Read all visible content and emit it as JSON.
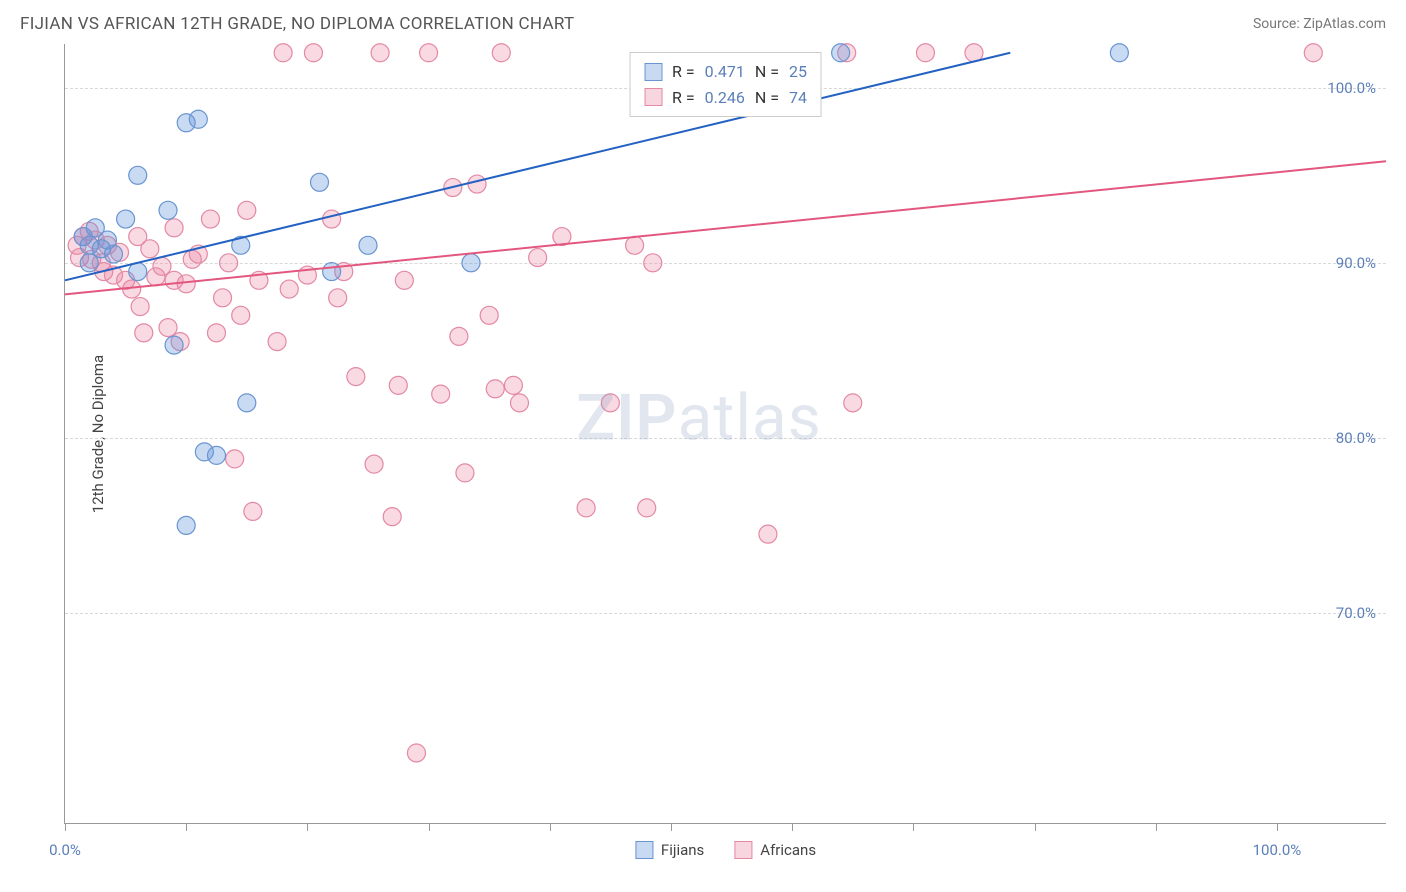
{
  "header": {
    "title": "FIJIAN VS AFRICAN 12TH GRADE, NO DIPLOMA CORRELATION CHART",
    "source": "Source: ZipAtlas.com"
  },
  "chart": {
    "type": "scatter",
    "ylabel": "12th Grade, No Diploma",
    "watermark_zip": "ZIP",
    "watermark_atlas": "atlas",
    "xlim": [
      0,
      109
    ],
    "ylim": [
      58,
      102.5
    ],
    "y_ticks": [
      70,
      80,
      90,
      100
    ],
    "y_tick_labels": [
      "70.0%",
      "80.0%",
      "90.0%",
      "100.0%"
    ],
    "x_ticks": [
      0,
      10,
      20,
      30,
      40,
      50,
      60,
      70,
      80,
      90,
      100
    ],
    "x_tick_labels_shown": {
      "0": "0.0%",
      "100": "100.0%"
    },
    "background_color": "#ffffff",
    "grid_color": "#d8d8d8",
    "axis_color": "#999999",
    "tick_label_color": "#5b7fb8",
    "series": {
      "fijians": {
        "label": "Fijians",
        "color_fill": "rgba(100,150,220,0.35)",
        "color_stroke": "#6a95d0",
        "swatch_fill": "#c8daf2",
        "swatch_border": "#6a95d0",
        "marker_radius": 9,
        "r_value": "0.471",
        "n_value": "25",
        "trend": {
          "x1": 0,
          "y1": 89.0,
          "x2": 78,
          "y2": 102.0,
          "color": "#2362c2",
          "width": 2
        },
        "points": [
          [
            1.5,
            91.5
          ],
          [
            2.0,
            91.0
          ],
          [
            2.5,
            92.0
          ],
          [
            3.5,
            91.3
          ],
          [
            3.0,
            90.8
          ],
          [
            6.0,
            95.0
          ],
          [
            8.5,
            93.0
          ],
          [
            9.0,
            85.3
          ],
          [
            10.0,
            98.0
          ],
          [
            11.0,
            98.2
          ],
          [
            11.5,
            79.2
          ],
          [
            12.5,
            79.0
          ],
          [
            10.0,
            75.0
          ],
          [
            14.5,
            91.0
          ],
          [
            15.0,
            82.0
          ],
          [
            21.0,
            94.6
          ],
          [
            22.0,
            89.5
          ],
          [
            25.0,
            91.0
          ],
          [
            33.5,
            90.0
          ],
          [
            64.0,
            102.0
          ],
          [
            87.0,
            102.0
          ],
          [
            4.0,
            90.5
          ],
          [
            6.0,
            89.5
          ],
          [
            2.0,
            90.0
          ],
          [
            5.0,
            92.5
          ]
        ]
      },
      "africans": {
        "label": "Africans",
        "color_fill": "rgba(235,130,160,0.30)",
        "color_stroke": "#e389a5",
        "swatch_fill": "#f7d6e0",
        "swatch_border": "#e389a5",
        "marker_radius": 9,
        "r_value": "0.246",
        "n_value": "74",
        "trend": {
          "x1": 0,
          "y1": 88.2,
          "x2": 109,
          "y2": 95.8,
          "color": "#e3577f",
          "width": 2
        },
        "points": [
          [
            1.0,
            91.0
          ],
          [
            1.2,
            90.3
          ],
          [
            1.5,
            91.5
          ],
          [
            2.0,
            91.8
          ],
          [
            2.2,
            90.2
          ],
          [
            2.5,
            91.3
          ],
          [
            3.0,
            90.0
          ],
          [
            3.2,
            89.5
          ],
          [
            3.5,
            91.0
          ],
          [
            4.0,
            89.3
          ],
          [
            4.5,
            90.6
          ],
          [
            5.0,
            89.0
          ],
          [
            5.5,
            88.5
          ],
          [
            6.0,
            91.5
          ],
          [
            6.2,
            87.5
          ],
          [
            6.5,
            86.0
          ],
          [
            7.0,
            90.8
          ],
          [
            7.5,
            89.2
          ],
          [
            8.0,
            89.8
          ],
          [
            8.5,
            86.3
          ],
          [
            9.0,
            92.0
          ],
          [
            9.5,
            85.5
          ],
          [
            10.0,
            88.8
          ],
          [
            10.5,
            90.2
          ],
          [
            12.0,
            92.5
          ],
          [
            12.5,
            86.0
          ],
          [
            13.0,
            88.0
          ],
          [
            14.0,
            78.8
          ],
          [
            14.5,
            87.0
          ],
          [
            15.0,
            93.0
          ],
          [
            15.5,
            75.8
          ],
          [
            16.0,
            89.0
          ],
          [
            17.5,
            85.5
          ],
          [
            18.0,
            102.0
          ],
          [
            18.5,
            88.5
          ],
          [
            20.0,
            89.3
          ],
          [
            20.5,
            102.0
          ],
          [
            22.0,
            92.5
          ],
          [
            22.5,
            88.0
          ],
          [
            23.0,
            89.5
          ],
          [
            24.0,
            83.5
          ],
          [
            25.5,
            78.5
          ],
          [
            26.0,
            102.0
          ],
          [
            27.0,
            75.5
          ],
          [
            27.5,
            83.0
          ],
          [
            28.0,
            89.0
          ],
          [
            29.0,
            62.0
          ],
          [
            30.0,
            102.0
          ],
          [
            31.0,
            82.5
          ],
          [
            32.0,
            94.3
          ],
          [
            32.5,
            85.8
          ],
          [
            33.0,
            78.0
          ],
          [
            34.0,
            94.5
          ],
          [
            35.0,
            87.0
          ],
          [
            35.5,
            82.8
          ],
          [
            36.0,
            102.0
          ],
          [
            37.0,
            83.0
          ],
          [
            37.5,
            82.0
          ],
          [
            39.0,
            90.3
          ],
          [
            41.0,
            91.5
          ],
          [
            43.0,
            76.0
          ],
          [
            45.0,
            82.0
          ],
          [
            47.0,
            91.0
          ],
          [
            48.0,
            76.0
          ],
          [
            48.5,
            90.0
          ],
          [
            58.0,
            74.5
          ],
          [
            64.5,
            102.0
          ],
          [
            65.0,
            82.0
          ],
          [
            71.0,
            102.0
          ],
          [
            75.0,
            102.0
          ],
          [
            103.0,
            102.0
          ],
          [
            9.0,
            89.0
          ],
          [
            11.0,
            90.5
          ],
          [
            13.5,
            90.0
          ]
        ]
      }
    },
    "legend_top": {
      "r_label": "R =",
      "n_label": "N ="
    }
  }
}
